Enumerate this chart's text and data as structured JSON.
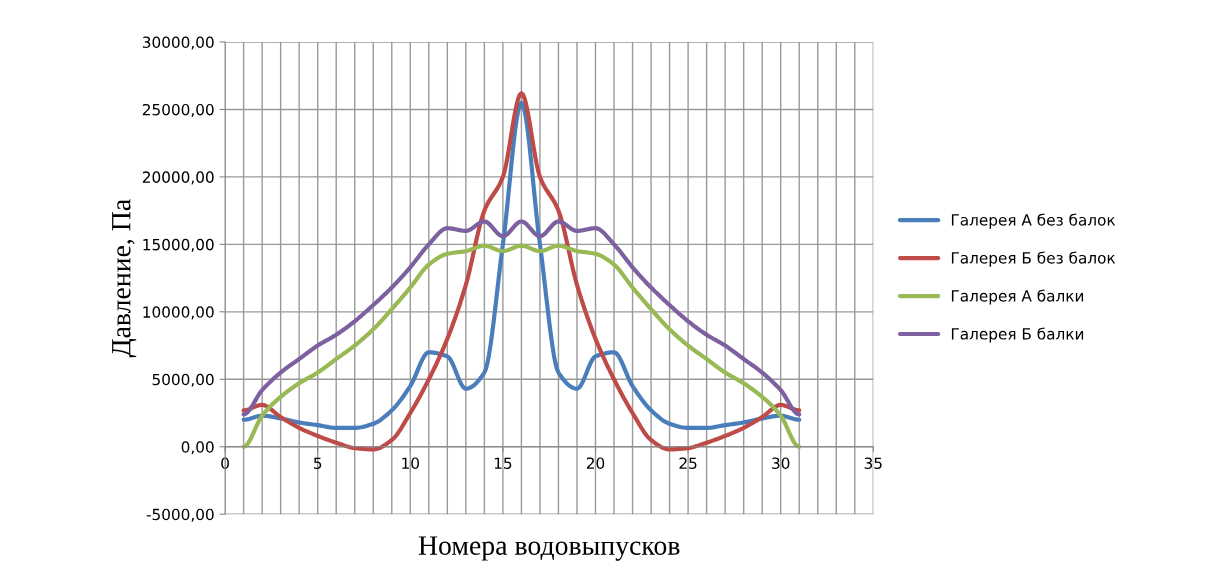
{
  "chart_data": {
    "type": "line",
    "xlabel": "Номера водовыпусков",
    "ylabel": "Давление, Па",
    "x": [
      1,
      2,
      3,
      4,
      5,
      6,
      7,
      8,
      9,
      10,
      11,
      12,
      13,
      14,
      15,
      16,
      17,
      18,
      19,
      20,
      21,
      22,
      23,
      24,
      25,
      26,
      27,
      28,
      29,
      30,
      31
    ],
    "series": [
      {
        "name": "Галерея А без балок",
        "color": "#4a7ebb",
        "values": [
          2000,
          2300,
          2100,
          1800,
          1600,
          1400,
          1400,
          1700,
          2700,
          4500,
          7000,
          6700,
          4300,
          5500,
          15000,
          25500,
          15000,
          5500,
          4300,
          6700,
          7000,
          4500,
          2700,
          1700,
          1400,
          1400,
          1600,
          1800,
          2100,
          2300,
          2000
        ]
      },
      {
        "name": "Галерея Б без балок",
        "color": "#be4b48",
        "values": [
          2700,
          3100,
          2200,
          1400,
          800,
          300,
          -100,
          -200,
          500,
          2500,
          5000,
          8000,
          12000,
          17500,
          20000,
          26200,
          20000,
          17500,
          12000,
          8000,
          5000,
          2500,
          500,
          -200,
          -100,
          300,
          800,
          1400,
          2200,
          3100,
          2700
        ]
      },
      {
        "name": "Галерея А балки",
        "color": "#98b954",
        "values": [
          0,
          2300,
          3700,
          4700,
          5500,
          6500,
          7500,
          8700,
          10200,
          11800,
          13500,
          14300,
          14500,
          14900,
          14500,
          14900,
          14500,
          14900,
          14500,
          14300,
          13500,
          11800,
          10200,
          8700,
          7500,
          6500,
          5500,
          4700,
          3700,
          2300,
          0
        ]
      },
      {
        "name": "Галерея Б балки",
        "color": "#7d60a0",
        "values": [
          2400,
          4200,
          5500,
          6500,
          7500,
          8300,
          9300,
          10500,
          11800,
          13300,
          15000,
          16200,
          16000,
          16700,
          15600,
          16700,
          15600,
          16700,
          16000,
          16200,
          15000,
          13300,
          11800,
          10500,
          9300,
          8300,
          7500,
          6500,
          5500,
          4200,
          2400
        ]
      }
    ],
    "xlim": [
      0,
      35
    ],
    "xticks": [
      0,
      5,
      10,
      15,
      20,
      25,
      30,
      35
    ],
    "ylim": [
      -5000,
      30000
    ],
    "yticks": [
      {
        "value": -5000,
        "label": "-5000,00"
      },
      {
        "value": 0,
        "label": "0,00"
      },
      {
        "value": 5000,
        "label": "5000,00"
      },
      {
        "value": 10000,
        "label": "10000,00"
      },
      {
        "value": 15000,
        "label": "15000,00"
      },
      {
        "value": 20000,
        "label": "20000,00"
      },
      {
        "value": 25000,
        "label": "25000,00"
      },
      {
        "value": 30000,
        "label": "30000,00"
      }
    ],
    "grid": true,
    "legend": "right",
    "line_style": "solid",
    "marker": "none"
  }
}
